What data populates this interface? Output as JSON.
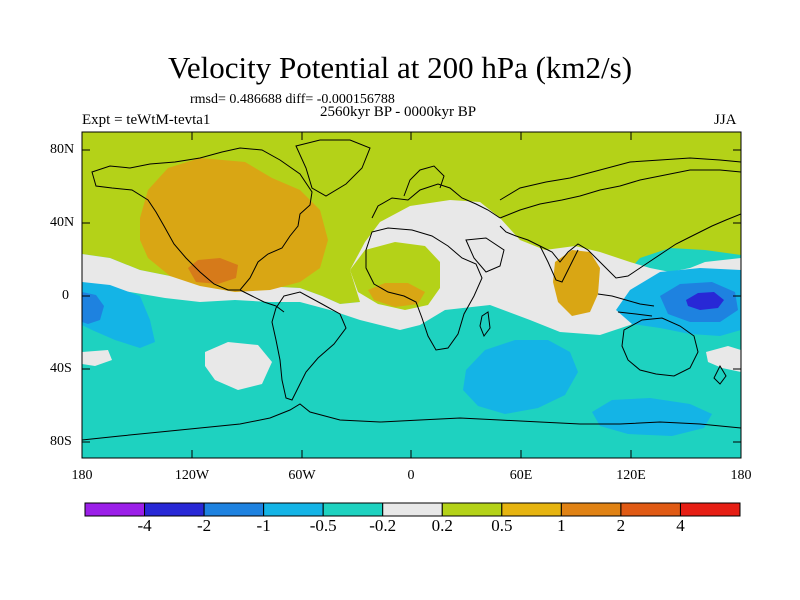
{
  "title": "Velocity Potential at 200 hPa (km2/s)",
  "stats_line": "rmsd= 0.486688 diff= -0.000156788",
  "period": "2560kyr BP - 0000kyr BP",
  "experiment": "Expt = teWtM-tevta1",
  "season": "JJA",
  "lat_ticks": [
    "80N",
    "40N",
    "0",
    "40S",
    "80S"
  ],
  "lon_ticks": [
    "180",
    "120W",
    "60W",
    "0",
    "60E",
    "120E",
    "180"
  ],
  "colorbar": {
    "labels": [
      "-4",
      "-2",
      "-1",
      "-0.5",
      "-0.2",
      "0.2",
      "0.5",
      "1",
      "2",
      "4"
    ],
    "colors": [
      "#9b1fe8",
      "#2828d6",
      "#1e82e0",
      "#14b4e6",
      "#1ed2c0",
      "#e8e8e8",
      "#b4d218",
      "#e6b410",
      "#e08214",
      "#e05a14",
      "#e61e14"
    ]
  },
  "field_colors": {
    "background_level": "#1ed2c0",
    "neutral": "#e8e8e8",
    "weak_positive": "#b4d218",
    "moderate_positive": "#d9a614",
    "strong_positive": "#d67a1a",
    "weak_negative": "#14b4e6",
    "moderate_negative": "#1e82e0",
    "strong_negative": "#2828d6"
  }
}
